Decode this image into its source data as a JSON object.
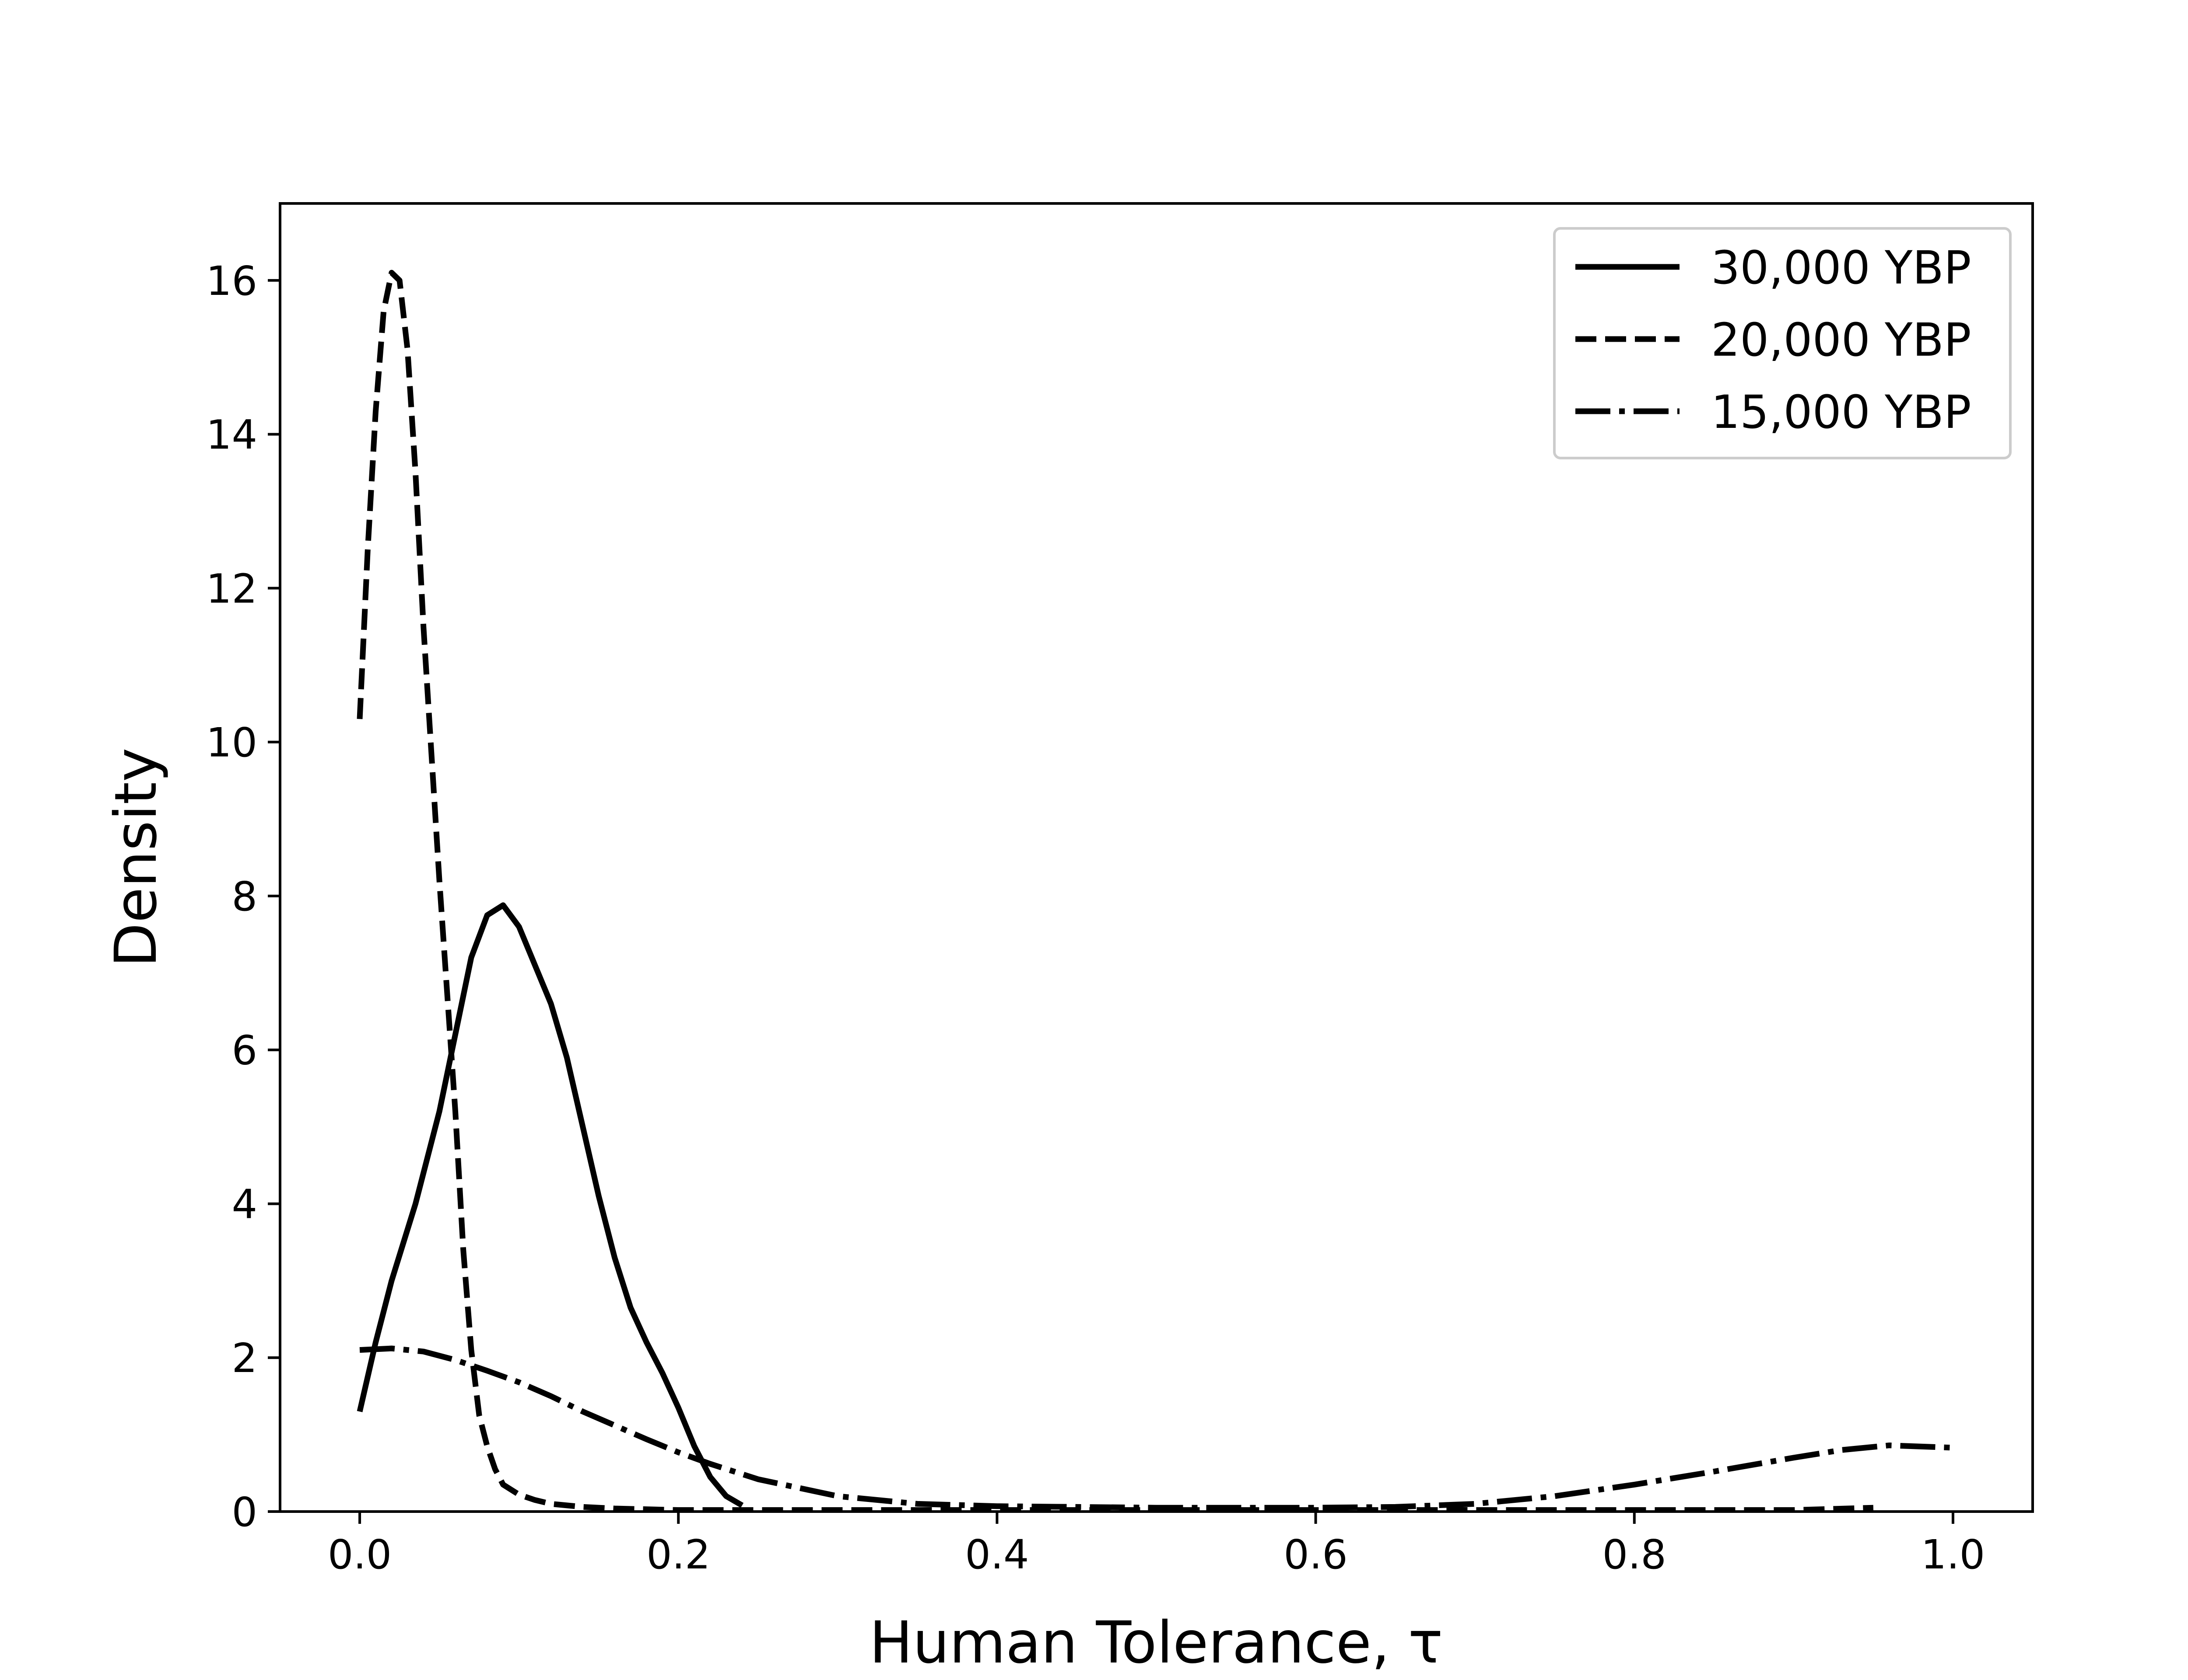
{
  "chart_data": {
    "type": "line",
    "title": "",
    "xlabel": "Human Tolerance, τ",
    "ylabel": "Density",
    "xlim": [
      -0.05,
      1.05
    ],
    "ylim": [
      0,
      17
    ],
    "x_ticks": [
      {
        "value": 0.0,
        "label": "0.0"
      },
      {
        "value": 0.2,
        "label": "0.2"
      },
      {
        "value": 0.4,
        "label": "0.4"
      },
      {
        "value": 0.6,
        "label": "0.6"
      },
      {
        "value": 0.8,
        "label": "0.8"
      },
      {
        "value": 1.0,
        "label": "1.0"
      }
    ],
    "y_ticks": [
      {
        "value": 0,
        "label": "0"
      },
      {
        "value": 2,
        "label": "2"
      },
      {
        "value": 4,
        "label": "4"
      },
      {
        "value": 6,
        "label": "6"
      },
      {
        "value": 8,
        "label": "8"
      },
      {
        "value": 10,
        "label": "10"
      },
      {
        "value": 12,
        "label": "12"
      },
      {
        "value": 14,
        "label": "14"
      },
      {
        "value": 16,
        "label": "16"
      }
    ],
    "grid": false,
    "legend_position": "top-right",
    "line_color": "#000000",
    "series": [
      {
        "name": "30,000 YBP",
        "style": "solid",
        "x": [
          0.0,
          0.01,
          0.02,
          0.035,
          0.05,
          0.06,
          0.07,
          0.08,
          0.09,
          0.1,
          0.11,
          0.12,
          0.13,
          0.14,
          0.15,
          0.16,
          0.17,
          0.18,
          0.19,
          0.2,
          0.21,
          0.22,
          0.23,
          0.24
        ],
        "y": [
          1.3,
          2.2,
          3.0,
          4.0,
          5.2,
          6.2,
          7.2,
          7.75,
          7.88,
          7.6,
          7.1,
          6.6,
          5.9,
          5.0,
          4.1,
          3.3,
          2.65,
          2.2,
          1.8,
          1.35,
          0.85,
          0.45,
          0.2,
          0.08
        ]
      },
      {
        "name": "20,000 YBP",
        "style": "dashed",
        "x": [
          0.0,
          0.005,
          0.01,
          0.015,
          0.02,
          0.025,
          0.03,
          0.035,
          0.04,
          0.05,
          0.06,
          0.065,
          0.07,
          0.075,
          0.08,
          0.085,
          0.09,
          0.1,
          0.11,
          0.12,
          0.14,
          0.16,
          0.2,
          0.3,
          0.4,
          0.5,
          0.6,
          0.7,
          0.8,
          0.9,
          0.95
        ],
        "y": [
          10.3,
          12.5,
          14.3,
          15.6,
          16.1,
          16.0,
          15.1,
          13.5,
          11.5,
          8.2,
          5.2,
          3.4,
          2.1,
          1.25,
          0.85,
          0.55,
          0.35,
          0.22,
          0.15,
          0.1,
          0.06,
          0.04,
          0.02,
          0.02,
          0.02,
          0.02,
          0.02,
          0.02,
          0.02,
          0.02,
          0.05
        ]
      },
      {
        "name": "15,000 YBP",
        "style": "dashdot",
        "x": [
          0.0,
          0.02,
          0.04,
          0.06,
          0.08,
          0.1,
          0.12,
          0.14,
          0.16,
          0.18,
          0.2,
          0.22,
          0.25,
          0.3,
          0.35,
          0.4,
          0.45,
          0.5,
          0.55,
          0.6,
          0.65,
          0.7,
          0.75,
          0.8,
          0.85,
          0.9,
          0.93,
          0.96,
          1.0
        ],
        "y": [
          2.1,
          2.12,
          2.08,
          1.97,
          1.83,
          1.68,
          1.5,
          1.3,
          1.12,
          0.94,
          0.77,
          0.62,
          0.42,
          0.2,
          0.1,
          0.07,
          0.06,
          0.05,
          0.05,
          0.05,
          0.06,
          0.1,
          0.2,
          0.35,
          0.52,
          0.7,
          0.8,
          0.86,
          0.83
        ]
      }
    ]
  }
}
